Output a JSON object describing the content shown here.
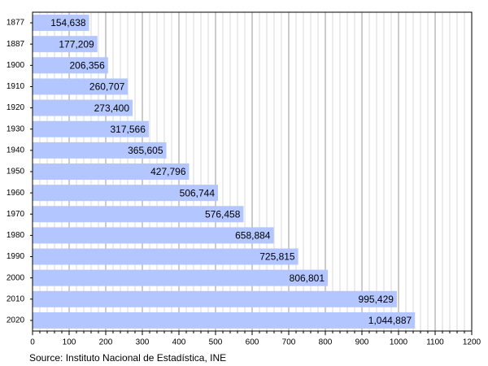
{
  "chart_data": {
    "type": "barh",
    "categories": [
      "1877",
      "1887",
      "1900",
      "1910",
      "1920",
      "1930",
      "1940",
      "1950",
      "1960",
      "1970",
      "1980",
      "1990",
      "2000",
      "2010",
      "2020"
    ],
    "values": [
      154.638,
      177.209,
      206.356,
      260.707,
      273.4,
      317.566,
      365.605,
      427.796,
      506.744,
      576.458,
      658.884,
      725.815,
      806.801,
      995.429,
      1044.887
    ],
    "value_labels": [
      "154,638",
      "177,209",
      "206,356",
      "260,707",
      "273,400",
      "317,566",
      "365,605",
      "427,796",
      "506,744",
      "576,458",
      "658,884",
      "725,815",
      "806,801",
      "995,429",
      "1,044,887"
    ],
    "color": "#b3c6ff",
    "xlim": [
      0,
      1200
    ],
    "xticks": [
      0,
      100,
      200,
      300,
      400,
      500,
      600,
      700,
      800,
      900,
      1000,
      1100,
      1200
    ],
    "minor_step": 20,
    "grid": true,
    "source": "Source: Instituto Nacional de Estadística, INE"
  }
}
